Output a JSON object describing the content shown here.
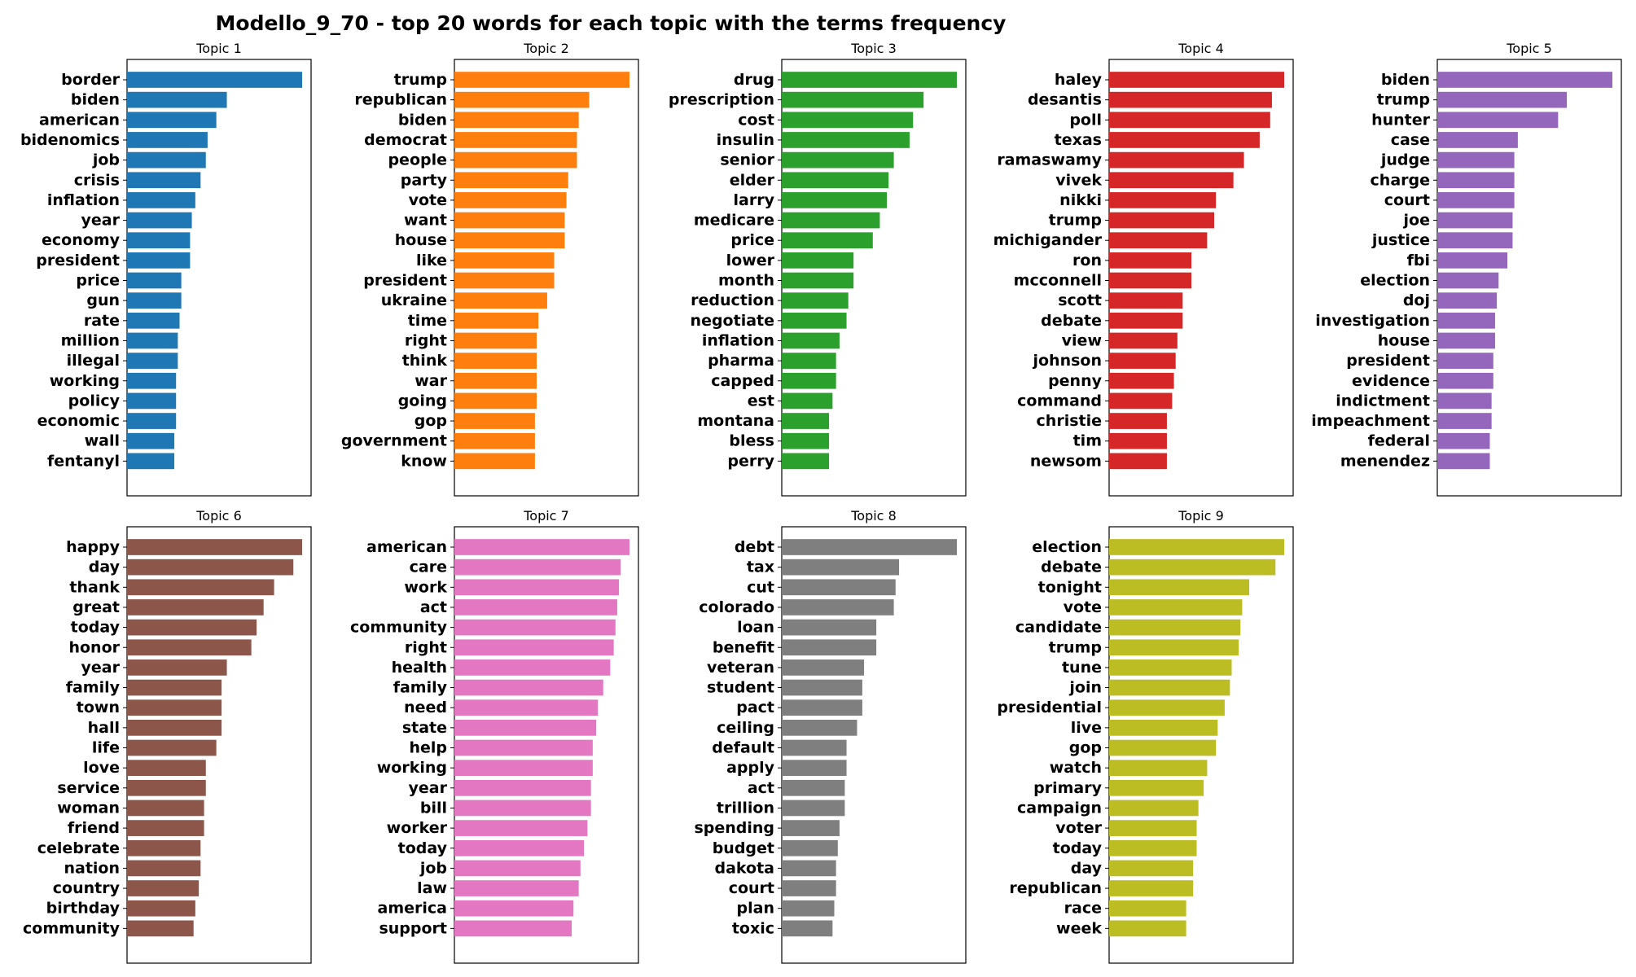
{
  "title": "Modello_9_70 - top 20 words for each topic with the terms frequency",
  "chart_data": [
    {
      "type": "bar",
      "orientation": "horizontal",
      "title": "Topic 1",
      "color": "#1f77b4",
      "categories": [
        "border",
        "biden",
        "american",
        "bidenomics",
        "job",
        "crisis",
        "inflation",
        "year",
        "economy",
        "president",
        "price",
        "gun",
        "rate",
        "million",
        "illegal",
        "working",
        "policy",
        "economic",
        "wall",
        "fentanyl"
      ],
      "values": [
        1.0,
        0.57,
        0.51,
        0.46,
        0.45,
        0.42,
        0.39,
        0.37,
        0.36,
        0.36,
        0.31,
        0.31,
        0.3,
        0.29,
        0.29,
        0.28,
        0.28,
        0.28,
        0.27,
        0.27
      ]
    },
    {
      "type": "bar",
      "orientation": "horizontal",
      "title": "Topic 2",
      "color": "#ff7f0e",
      "categories": [
        "trump",
        "republican",
        "biden",
        "democrat",
        "people",
        "party",
        "vote",
        "want",
        "house",
        "like",
        "president",
        "ukraine",
        "time",
        "right",
        "think",
        "war",
        "going",
        "gop",
        "government",
        "know"
      ],
      "values": [
        1.0,
        0.77,
        0.71,
        0.7,
        0.7,
        0.65,
        0.64,
        0.63,
        0.63,
        0.57,
        0.57,
        0.53,
        0.48,
        0.47,
        0.47,
        0.47,
        0.47,
        0.46,
        0.46,
        0.46
      ]
    },
    {
      "type": "bar",
      "orientation": "horizontal",
      "title": "Topic 3",
      "color": "#2ca02c",
      "categories": [
        "drug",
        "prescription",
        "cost",
        "insulin",
        "senior",
        "elder",
        "larry",
        "medicare",
        "price",
        "lower",
        "month",
        "reduction",
        "negotiate",
        "inflation",
        "pharma",
        "capped",
        "est",
        "montana",
        "bless",
        "perry"
      ],
      "values": [
        1.0,
        0.81,
        0.75,
        0.73,
        0.64,
        0.61,
        0.6,
        0.56,
        0.52,
        0.41,
        0.41,
        0.38,
        0.37,
        0.33,
        0.31,
        0.31,
        0.29,
        0.27,
        0.27,
        0.27
      ]
    },
    {
      "type": "bar",
      "orientation": "horizontal",
      "title": "Topic 4",
      "color": "#d62728",
      "categories": [
        "haley",
        "desantis",
        "poll",
        "texas",
        "ramaswamy",
        "vivek",
        "nikki",
        "trump",
        "michigander",
        "ron",
        "mcconnell",
        "scott",
        "debate",
        "view",
        "johnson",
        "penny",
        "command",
        "christie",
        "tim",
        "newsom"
      ],
      "values": [
        1.0,
        0.93,
        0.92,
        0.86,
        0.77,
        0.71,
        0.61,
        0.6,
        0.56,
        0.47,
        0.47,
        0.42,
        0.42,
        0.39,
        0.38,
        0.37,
        0.36,
        0.33,
        0.33,
        0.33
      ]
    },
    {
      "type": "bar",
      "orientation": "horizontal",
      "title": "Topic 5",
      "color": "#9467bd",
      "categories": [
        "biden",
        "trump",
        "hunter",
        "case",
        "judge",
        "charge",
        "court",
        "joe",
        "justice",
        "fbi",
        "election",
        "doj",
        "investigation",
        "house",
        "president",
        "evidence",
        "indictment",
        "impeachment",
        "federal",
        "menendez"
      ],
      "values": [
        1.0,
        0.74,
        0.69,
        0.46,
        0.44,
        0.44,
        0.44,
        0.43,
        0.43,
        0.4,
        0.35,
        0.34,
        0.33,
        0.33,
        0.32,
        0.32,
        0.31,
        0.31,
        0.3,
        0.3
      ]
    },
    {
      "type": "bar",
      "orientation": "horizontal",
      "title": "Topic 6",
      "color": "#8c564b",
      "categories": [
        "happy",
        "day",
        "thank",
        "great",
        "today",
        "honor",
        "year",
        "family",
        "town",
        "hall",
        "life",
        "love",
        "service",
        "woman",
        "friend",
        "celebrate",
        "nation",
        "country",
        "birthday",
        "community"
      ],
      "values": [
        1.0,
        0.95,
        0.84,
        0.78,
        0.74,
        0.71,
        0.57,
        0.54,
        0.54,
        0.54,
        0.51,
        0.45,
        0.45,
        0.44,
        0.44,
        0.42,
        0.42,
        0.41,
        0.39,
        0.38
      ]
    },
    {
      "type": "bar",
      "orientation": "horizontal",
      "title": "Topic 7",
      "color": "#e377c2",
      "categories": [
        "american",
        "care",
        "work",
        "act",
        "community",
        "right",
        "health",
        "family",
        "need",
        "state",
        "help",
        "working",
        "year",
        "bill",
        "worker",
        "today",
        "job",
        "law",
        "america",
        "support"
      ],
      "values": [
        1.0,
        0.95,
        0.94,
        0.93,
        0.92,
        0.91,
        0.89,
        0.85,
        0.82,
        0.81,
        0.79,
        0.79,
        0.78,
        0.78,
        0.76,
        0.74,
        0.72,
        0.71,
        0.68,
        0.67
      ]
    },
    {
      "type": "bar",
      "orientation": "horizontal",
      "title": "Topic 8",
      "color": "#7f7f7f",
      "categories": [
        "debt",
        "tax",
        "cut",
        "colorado",
        "loan",
        "benefit",
        "veteran",
        "student",
        "pact",
        "ceiling",
        "default",
        "apply",
        "act",
        "trillion",
        "spending",
        "budget",
        "dakota",
        "court",
        "plan",
        "toxic"
      ],
      "values": [
        1.0,
        0.67,
        0.65,
        0.64,
        0.54,
        0.54,
        0.47,
        0.46,
        0.46,
        0.43,
        0.37,
        0.37,
        0.36,
        0.36,
        0.33,
        0.32,
        0.31,
        0.31,
        0.3,
        0.29
      ]
    },
    {
      "type": "bar",
      "orientation": "horizontal",
      "title": "Topic 9",
      "color": "#bcbd22",
      "categories": [
        "election",
        "debate",
        "tonight",
        "vote",
        "candidate",
        "trump",
        "tune",
        "join",
        "presidential",
        "live",
        "gop",
        "watch",
        "primary",
        "campaign",
        "voter",
        "today",
        "day",
        "republican",
        "race",
        "week"
      ],
      "values": [
        1.0,
        0.95,
        0.8,
        0.76,
        0.75,
        0.74,
        0.7,
        0.69,
        0.66,
        0.62,
        0.61,
        0.56,
        0.54,
        0.51,
        0.5,
        0.5,
        0.48,
        0.48,
        0.44,
        0.44
      ]
    }
  ]
}
